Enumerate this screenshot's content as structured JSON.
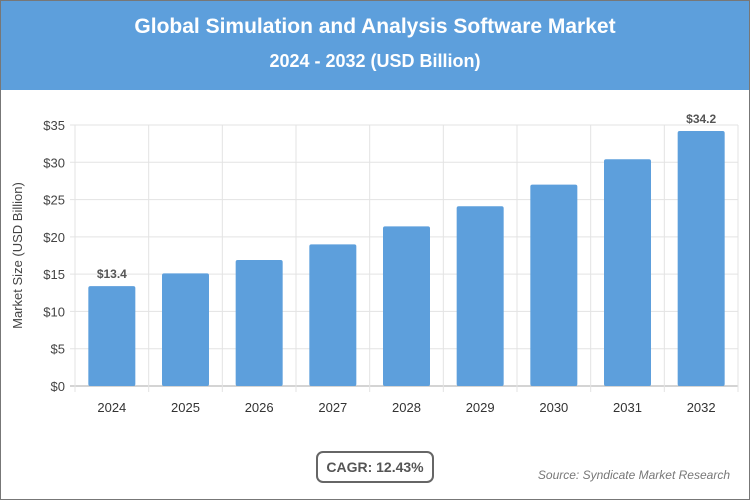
{
  "header": {
    "title": "Global Simulation and Analysis Software Market",
    "subtitle": "2024 - 2032 (USD Billion)"
  },
  "chart_data": {
    "type": "bar",
    "title": "Global Simulation and Analysis Software Market",
    "subtitle": "2024 - 2032 (USD Billion)",
    "ylabel": "Market Size (USD Billion)",
    "xlabel": "",
    "categories": [
      "2024",
      "2025",
      "2026",
      "2027",
      "2028",
      "2029",
      "2030",
      "2031",
      "2032"
    ],
    "values": [
      13.4,
      15.1,
      16.9,
      19.0,
      21.4,
      24.1,
      27.0,
      30.4,
      34.2
    ],
    "data_labels": {
      "0": "$13.4",
      "8": "$34.2"
    },
    "ylim": [
      0,
      35
    ],
    "yticks": [
      "$0",
      "$5",
      "$10",
      "$15",
      "$20",
      "$25",
      "$30",
      "$35"
    ],
    "grid": true,
    "bar_color": "#5d9fdc"
  },
  "footer": {
    "cagr": "CAGR: 12.43%",
    "source": "Source: Syndicate Market Research"
  }
}
